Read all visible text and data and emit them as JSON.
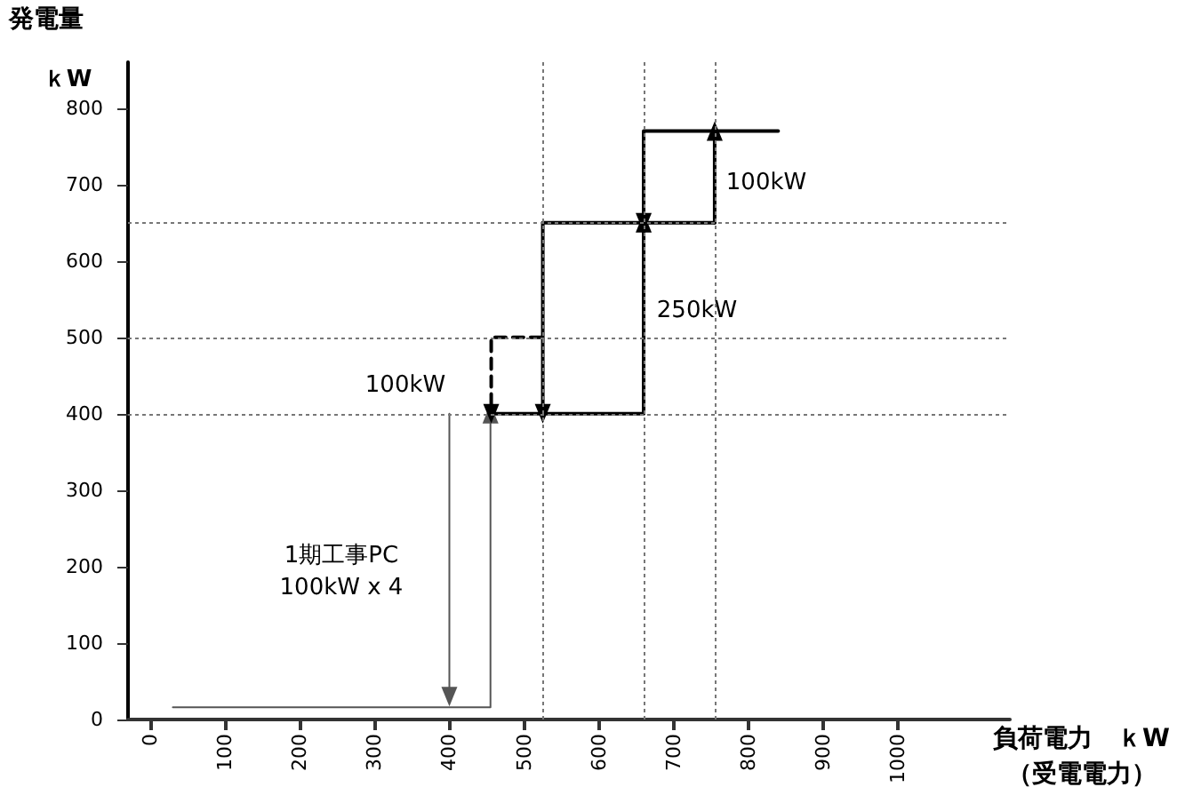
{
  "chart_data": {
    "type": "line",
    "ylabel": "発電量",
    "xlabel": "負荷電力　ｋW\n（受電電力）",
    "xlim": [
      -30,
      1150
    ],
    "xticks": [
      0,
      100,
      200,
      300,
      400,
      500,
      600,
      700,
      800,
      900,
      1000
    ],
    "ylim": [
      0,
      860
    ],
    "yticks": [
      0,
      100,
      200,
      300,
      400,
      500,
      600,
      700,
      800
    ],
    "grid": false,
    "series": [
      {
        "color": "#555555",
        "x": [
          30,
          455,
          455
        ],
        "values": [
          16,
          16,
          400
        ]
      },
      {
        "color": "#000000",
        "x": [
          455,
          660,
          660
        ],
        "values": [
          400,
          400,
          650
        ]
      },
      {
        "color": "#000000",
        "x": [
          840,
          660,
          660
        ],
        "values": [
          770,
          770,
          650
        ]
      },
      {
        "color": "#000000",
        "x": [
          755,
          525,
          525
        ],
        "values": [
          650,
          650,
          400
        ]
      },
      {
        "color": "#000000",
        "x": [
          755,
          755
        ],
        "values": [
          650,
          770
        ]
      },
      {
        "color": "#000000",
        "line_style": "dashed",
        "x": [
          523,
          456,
          456
        ],
        "values": [
          500,
          500,
          400
        ]
      },
      {
        "color": "#555555",
        "x": [
          400,
          400
        ],
        "values": [
          400,
          30
        ]
      }
    ],
    "ref_lines": [
      {
        "axis": "y",
        "value": 400,
        "line_style": "dotted",
        "color": "#777777"
      },
      {
        "axis": "y",
        "value": 500,
        "line_style": "dotted",
        "color": "#777777"
      },
      {
        "axis": "y",
        "value": 650,
        "line_style": "dotted",
        "color": "#777777"
      },
      {
        "axis": "x",
        "value": 525,
        "line_style": "dotted",
        "color": "#777777"
      },
      {
        "axis": "x",
        "value": 660,
        "line_style": "dotted",
        "color": "#777777"
      },
      {
        "axis": "x",
        "value": 755,
        "line_style": "dotted",
        "color": "#777777"
      }
    ],
    "annotations": [
      "100kW",
      "250kW",
      "100kW",
      "1期工事PC\n100kW x 4",
      "ｋW"
    ]
  }
}
